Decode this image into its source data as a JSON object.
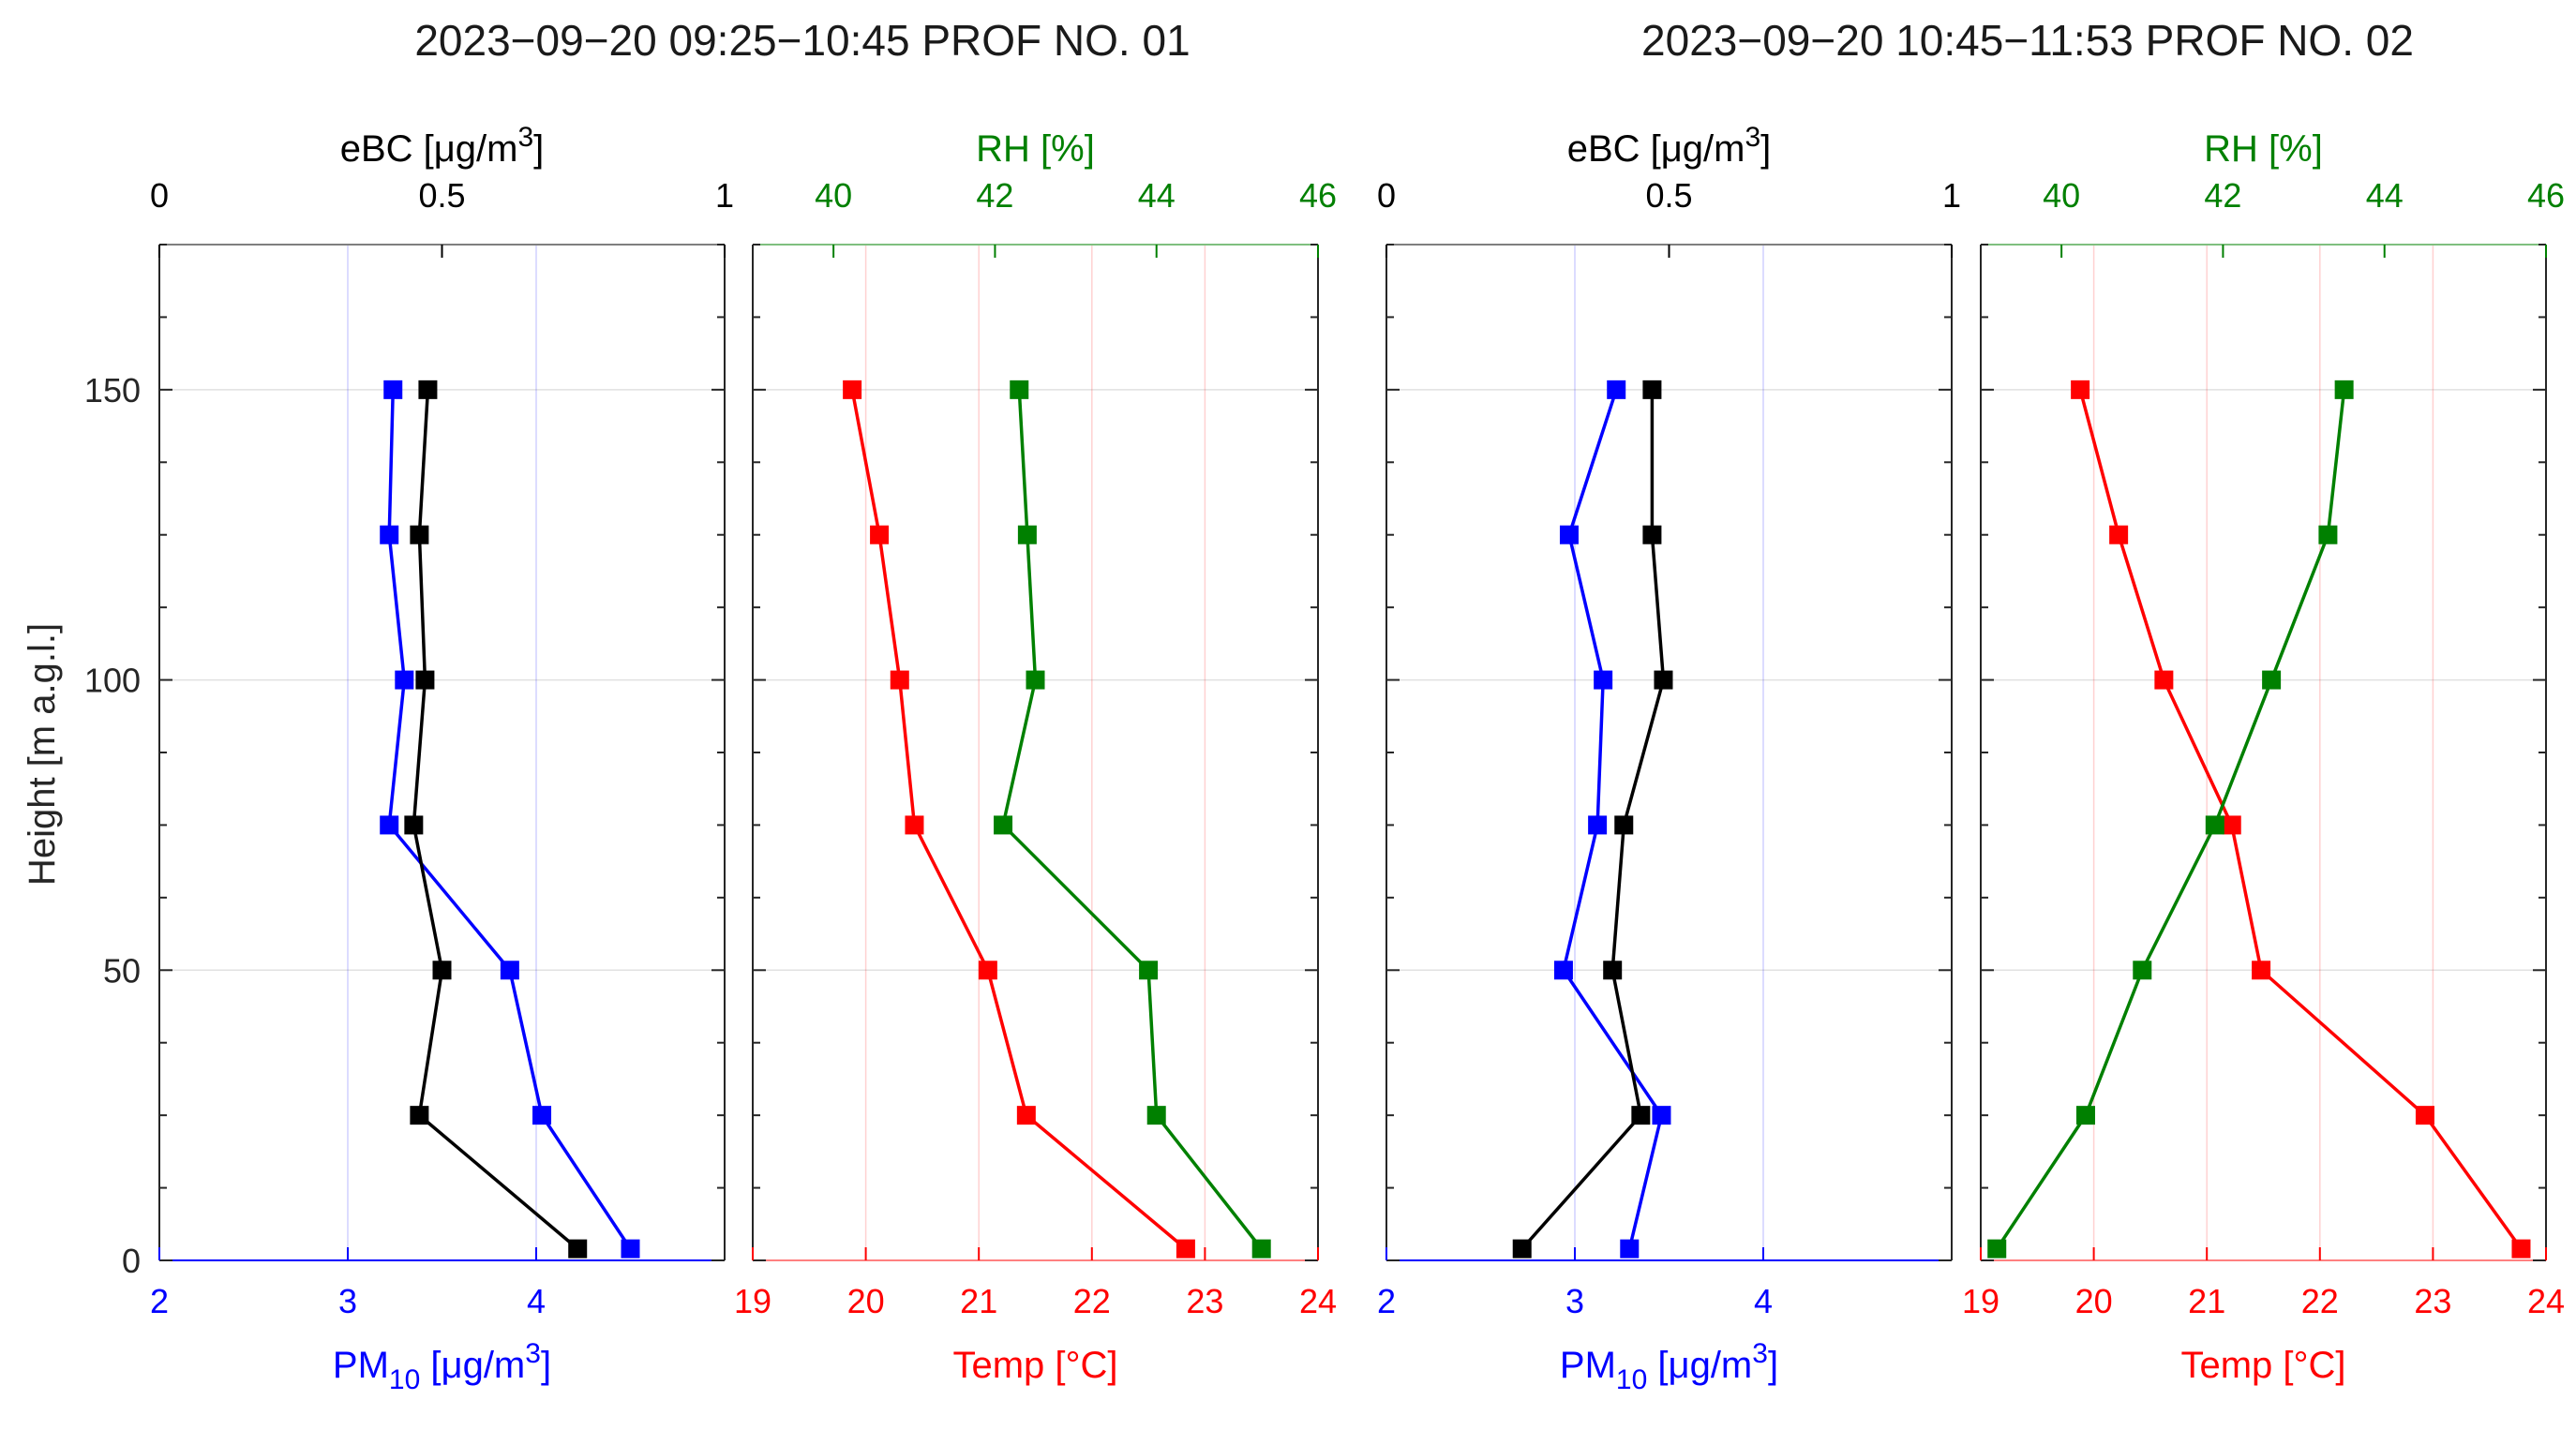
{
  "colors": {
    "pm": "#0000ff",
    "ebc": "#000000",
    "temp": "#ff0000",
    "rh": "#008000",
    "axis": "#262626",
    "grid": "#e1e1e1"
  },
  "chart_data": [
    {
      "type": "line",
      "panel": "PROF NO. 01 - aerosol",
      "title": "2023−09−20 09:25−10:45 PROF NO. 01",
      "ylabel": "Height [m a.g.l.]",
      "ylim": [
        0,
        175
      ],
      "yticks": [
        0,
        50,
        100,
        150
      ],
      "ytick_labels": [
        "0",
        "50",
        "100",
        "150"
      ],
      "top_axis": {
        "label_main": "eBC [μg/m",
        "label_sup": "3",
        "label_end": "]",
        "lim": [
          0,
          1
        ],
        "ticks": [
          0,
          0.5,
          1
        ],
        "tick_labels": [
          "0",
          "0.5",
          "1"
        ]
      },
      "bottom_axis": {
        "label_main": "PM",
        "label_sub": "10",
        "label_mid": " [μg/m",
        "label_sup": "3",
        "label_end": "]",
        "lim": [
          2,
          5
        ],
        "ticks": [
          2,
          3,
          4
        ],
        "tick_labels": [
          "2",
          "3",
          "4"
        ]
      },
      "series": [
        {
          "name": "PM10",
          "axis": "bottom",
          "color": "pm",
          "x": [
            4.5,
            4.03,
            3.86,
            3.22,
            3.3,
            3.22,
            3.24
          ],
          "y": [
            2,
            25,
            50,
            75,
            100,
            125,
            150
          ]
        },
        {
          "name": "eBC",
          "axis": "top",
          "color": "ebc",
          "x": [
            0.74,
            0.46,
            0.5,
            0.45,
            0.47,
            0.46,
            0.475
          ],
          "y": [
            2,
            25,
            50,
            75,
            100,
            125,
            150
          ]
        }
      ]
    },
    {
      "type": "line",
      "panel": "PROF NO. 01 - meteo",
      "ylim": [
        0,
        175
      ],
      "yticks": [
        0,
        50,
        100,
        150
      ],
      "top_axis": {
        "label": "RH [%]",
        "lim": [
          39,
          46
        ],
        "ticks": [
          40,
          42,
          44,
          46
        ],
        "tick_labels": [
          "40",
          "42",
          "44",
          "46"
        ]
      },
      "bottom_axis": {
        "label": "Temp [°C]",
        "lim": [
          19,
          24
        ],
        "ticks": [
          19,
          20,
          21,
          22,
          23,
          24
        ],
        "tick_labels": [
          "19",
          "20",
          "21",
          "22",
          "23",
          "24"
        ]
      },
      "series": [
        {
          "name": "Temp",
          "axis": "bottom",
          "color": "temp",
          "x": [
            22.83,
            21.42,
            21.08,
            20.43,
            20.3,
            20.12,
            19.88
          ],
          "y": [
            2,
            25,
            50,
            75,
            100,
            125,
            150
          ]
        },
        {
          "name": "RH",
          "axis": "top",
          "color": "rh",
          "x": [
            45.3,
            44.0,
            43.9,
            42.1,
            42.5,
            42.4,
            42.3
          ],
          "y": [
            2,
            25,
            50,
            75,
            100,
            125,
            150
          ]
        }
      ]
    },
    {
      "type": "line",
      "panel": "PROF NO. 02 - aerosol",
      "title": "2023−09−20 10:45−11:53 PROF NO. 02",
      "ylim": [
        0,
        175
      ],
      "yticks": [
        0,
        50,
        100,
        150
      ],
      "top_axis": {
        "label_main": "eBC [μg/m",
        "label_sup": "3",
        "label_end": "]",
        "lim": [
          0,
          1
        ],
        "ticks": [
          0,
          0.5,
          1
        ],
        "tick_labels": [
          "0",
          "0.5",
          "1"
        ]
      },
      "bottom_axis": {
        "label_main": "PM",
        "label_sub": "10",
        "label_mid": " [μg/m",
        "label_sup": "3",
        "label_end": "]",
        "lim": [
          2,
          5
        ],
        "ticks": [
          2,
          3,
          4
        ],
        "tick_labels": [
          "2",
          "3",
          "4"
        ]
      },
      "series": [
        {
          "name": "PM10",
          "axis": "bottom",
          "color": "pm",
          "x": [
            3.29,
            3.46,
            2.94,
            3.12,
            3.15,
            2.97,
            3.22
          ],
          "y": [
            2,
            25,
            50,
            75,
            100,
            125,
            150
          ]
        },
        {
          "name": "eBC",
          "axis": "top",
          "color": "ebc",
          "x": [
            0.24,
            0.45,
            0.4,
            0.42,
            0.49,
            0.47,
            0.47
          ],
          "y": [
            2,
            25,
            50,
            75,
            100,
            125,
            150
          ]
        }
      ]
    },
    {
      "type": "line",
      "panel": "PROF NO. 02 - meteo",
      "ylim": [
        0,
        175
      ],
      "yticks": [
        0,
        50,
        100,
        150
      ],
      "top_axis": {
        "label": "RH [%]",
        "lim": [
          39,
          46
        ],
        "ticks": [
          40,
          42,
          44,
          46
        ],
        "tick_labels": [
          "40",
          "42",
          "44",
          "46"
        ]
      },
      "bottom_axis": {
        "label": "Temp [°C]",
        "lim": [
          19,
          24
        ],
        "ticks": [
          19,
          20,
          21,
          22,
          23,
          24
        ],
        "tick_labels": [
          "19",
          "20",
          "21",
          "22",
          "23",
          "24"
        ]
      },
      "series": [
        {
          "name": "Temp",
          "axis": "bottom",
          "color": "temp",
          "x": [
            23.78,
            22.93,
            21.48,
            21.22,
            20.62,
            20.22,
            19.88
          ],
          "y": [
            2,
            25,
            50,
            75,
            100,
            125,
            150
          ]
        },
        {
          "name": "RH",
          "axis": "top",
          "color": "rh",
          "x": [
            39.2,
            40.3,
            41.0,
            41.9,
            42.6,
            43.3,
            43.5
          ],
          "y": [
            2,
            25,
            50,
            75,
            100,
            125,
            150
          ]
        }
      ]
    }
  ]
}
